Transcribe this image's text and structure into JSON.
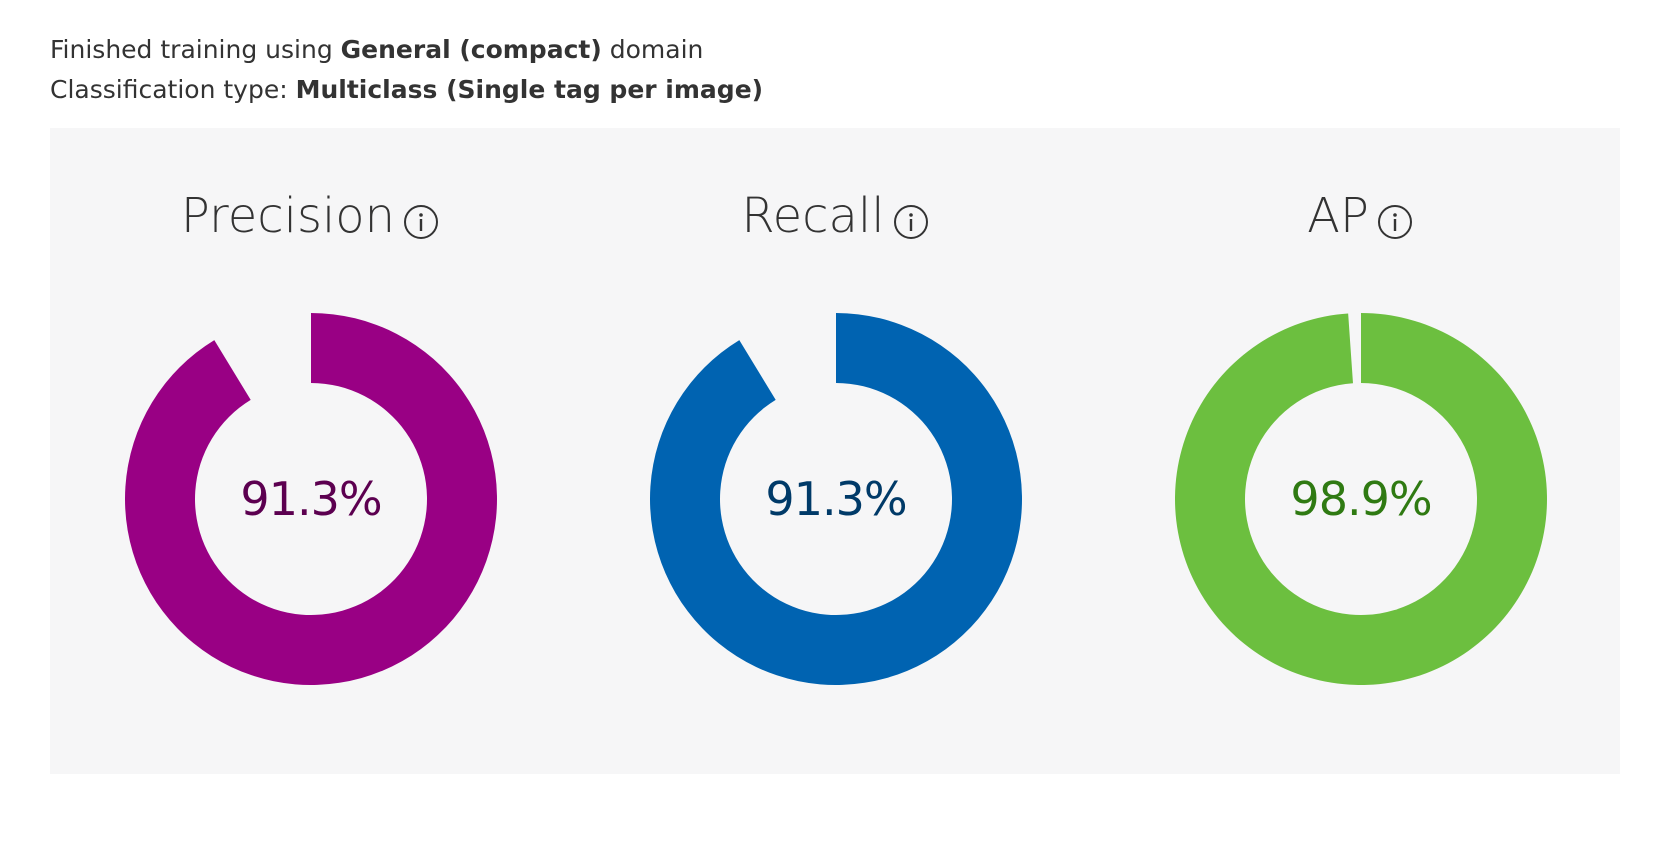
{
  "summary": {
    "line1_prefix": "Finished training using ",
    "line1_bold": "General (compact)",
    "line1_suffix": " domain",
    "line2_prefix": "Classification type: ",
    "line2_bold": "Multiclass (Single tag per image)"
  },
  "metrics": [
    {
      "title": "Precision",
      "value_text": "91.3%",
      "value": 0.913,
      "color": "#990084",
      "text_color": "#5c0050",
      "info_icon": "info-icon"
    },
    {
      "title": "Recall",
      "value_text": "91.3%",
      "value": 0.913,
      "color": "#0063b1",
      "text_color": "#003a68",
      "info_icon": "info-icon"
    },
    {
      "title": "AP",
      "value_text": "98.9%",
      "value": 0.989,
      "color": "#6cbf3f",
      "text_color": "#2f7a12",
      "info_icon": "info-icon"
    }
  ]
}
